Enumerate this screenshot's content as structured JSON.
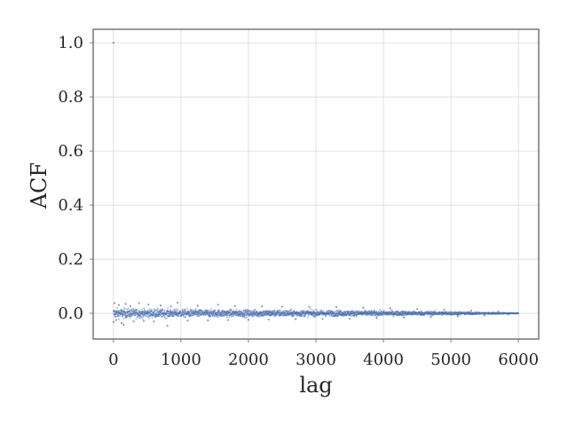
{
  "chart_data": {
    "type": "scatter",
    "title": "",
    "xlabel": "lag",
    "ylabel": "ACF",
    "xlim": [
      -300,
      6300
    ],
    "ylim": [
      -0.095,
      1.05
    ],
    "xticks": [
      0,
      1000,
      2000,
      3000,
      4000,
      5000,
      6000
    ],
    "yticks": [
      0.0,
      0.2,
      0.4,
      0.6,
      0.8,
      1.0
    ],
    "xtick_labels": [
      "0",
      "1000",
      "2000",
      "3000",
      "4000",
      "5000",
      "6000"
    ],
    "ytick_labels": [
      "0.0",
      "0.2",
      "0.4",
      "0.6",
      "0.8",
      "1.0"
    ],
    "grid": true,
    "legend": "none",
    "marker_color": "#4c72b0",
    "series": [
      {
        "lag_range": [
          0,
          6000
        ],
        "points": [
          [
            0,
            1.0
          ],
          [
            2,
            -0.032
          ],
          [
            15,
            0.038
          ],
          [
            40,
            -0.025
          ],
          [
            80,
            0.031
          ],
          [
            120,
            -0.036
          ],
          [
            150,
            -0.042
          ],
          [
            180,
            0.035
          ],
          [
            250,
            0.027
          ],
          [
            300,
            -0.03
          ],
          [
            380,
            0.038
          ],
          [
            450,
            -0.028
          ],
          [
            520,
            0.033
          ],
          [
            600,
            -0.03
          ],
          [
            700,
            0.029
          ],
          [
            800,
            -0.046
          ],
          [
            850,
            0.026
          ],
          [
            950,
            0.04
          ],
          [
            1100,
            -0.027
          ],
          [
            1250,
            0.028
          ],
          [
            1400,
            -0.026
          ],
          [
            1550,
            0.032
          ],
          [
            1700,
            -0.025
          ],
          [
            1800,
            0.027
          ],
          [
            2000,
            -0.024
          ],
          [
            2200,
            0.026
          ],
          [
            2300,
            -0.023
          ],
          [
            2500,
            0.025
          ],
          [
            2700,
            -0.022
          ],
          [
            2900,
            0.024
          ],
          [
            3100,
            -0.021
          ],
          [
            3300,
            0.023
          ],
          [
            3500,
            -0.02
          ],
          [
            3700,
            0.021
          ],
          [
            3900,
            -0.018
          ],
          [
            4100,
            0.019
          ],
          [
            4300,
            -0.016
          ],
          [
            4500,
            0.016
          ],
          [
            4700,
            -0.014
          ],
          [
            4900,
            0.013
          ],
          [
            5100,
            -0.011
          ],
          [
            5300,
            0.01
          ],
          [
            5500,
            -0.008
          ],
          [
            5700,
            0.007
          ],
          [
            5850,
            -0.004
          ],
          [
            5990,
            0.002
          ]
        ],
        "envelope": {
          "lags": [
            0,
            1000,
            2000,
            3000,
            4000,
            5000,
            6000
          ],
          "max_abs_acf": [
            0.03,
            0.024,
            0.022,
            0.019,
            0.016,
            0.011,
            0.002
          ]
        }
      }
    ]
  }
}
